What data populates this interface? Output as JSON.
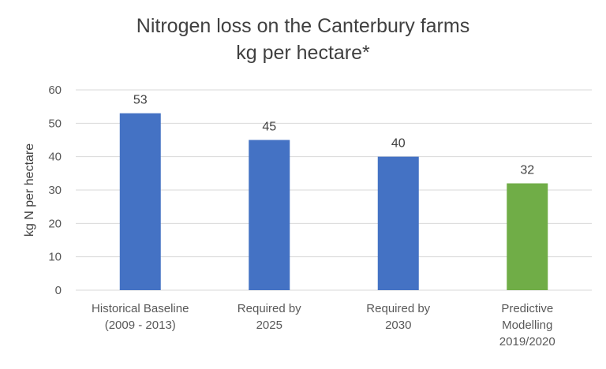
{
  "chart_data": {
    "type": "bar",
    "title": "Nitrogen loss on the Canterbury farms",
    "subtitle": "kg per hectare*",
    "xlabel": "",
    "ylabel": "kg N per hectare",
    "ylim": [
      0,
      60
    ],
    "yticks": [
      0,
      10,
      20,
      30,
      40,
      50,
      60
    ],
    "grid": true,
    "categories": [
      [
        "Historical Baseline",
        "(2009 - 2013)"
      ],
      [
        "Required by",
        "2025"
      ],
      [
        "Required by",
        "2030"
      ],
      [
        "Predictive",
        "Modelling",
        "2019/2020"
      ]
    ],
    "values": [
      53,
      45,
      40,
      32
    ],
    "data_labels": [
      "53",
      "45",
      "40",
      "32"
    ],
    "colors": [
      "#4472C4",
      "#4472C4",
      "#4472C4",
      "#70AD47"
    ],
    "gridline_color": "#D9D9D9"
  }
}
